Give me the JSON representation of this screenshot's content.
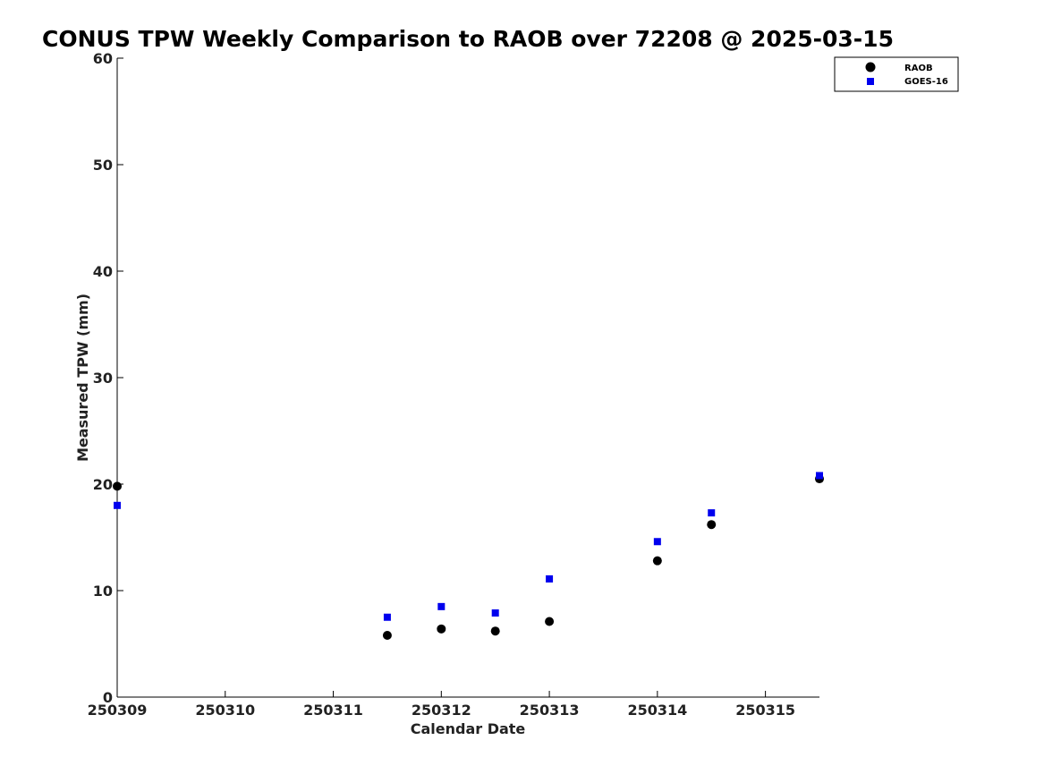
{
  "chart_data": {
    "type": "scatter",
    "title": "CONUS TPW Weekly Comparison to RAOB over 72208 @ 2025-03-15",
    "xlabel": "Calendar Date",
    "ylabel": "Measured TPW (mm)",
    "xlim": [
      "250309",
      "250315.5"
    ],
    "ylim": [
      0,
      60
    ],
    "x_ticks": [
      "250309",
      "250310",
      "250311",
      "250312",
      "250313",
      "250314",
      "250315"
    ],
    "y_ticks": [
      0,
      10,
      20,
      30,
      40,
      50,
      60
    ],
    "grid": false,
    "legend_position": "top-right",
    "series": [
      {
        "name": "RAOB",
        "marker": "circle",
        "color": "#000000",
        "x": [
          "2025-03-09 00Z",
          "2025-03-11 12Z",
          "2025-03-12 00Z",
          "2025-03-12 12Z",
          "2025-03-13 00Z",
          "2025-03-14 00Z",
          "2025-03-14 12Z",
          "2025-03-15 12Z"
        ],
        "y": [
          19.8,
          5.8,
          6.4,
          6.2,
          7.1,
          12.8,
          16.2,
          20.5
        ]
      },
      {
        "name": "GOES-16",
        "marker": "square",
        "color": "#0000ee",
        "x": [
          "2025-03-09 00Z",
          "2025-03-11 12Z",
          "2025-03-12 00Z",
          "2025-03-12 12Z",
          "2025-03-13 00Z",
          "2025-03-14 00Z",
          "2025-03-14 12Z",
          "2025-03-15 12Z"
        ],
        "y": [
          18.0,
          7.5,
          8.5,
          7.9,
          11.1,
          14.6,
          17.3,
          20.8
        ]
      }
    ]
  }
}
